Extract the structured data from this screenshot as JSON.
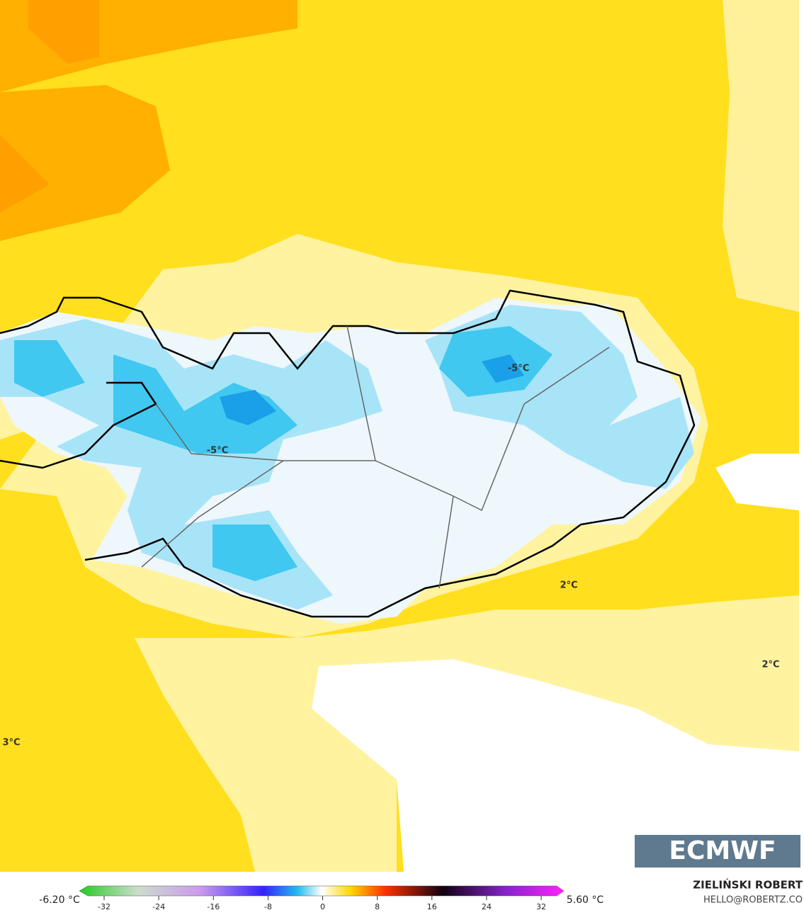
{
  "map": {
    "contour_labels": [
      "-5°C",
      "-5°C",
      "2°C",
      "2°C",
      "3°C"
    ],
    "logo": "ECMWF",
    "author": "ZIELIŃSKI ROBERT",
    "contact": "HELLO@ROBERTZ.CO"
  },
  "colorbar": {
    "min_label": "-6.20 °C",
    "max_label": "5.60 °C",
    "range": [
      -32,
      32
    ],
    "ticks": [
      -32,
      -24,
      -16,
      -8,
      0,
      8,
      16,
      24,
      32
    ]
  }
}
